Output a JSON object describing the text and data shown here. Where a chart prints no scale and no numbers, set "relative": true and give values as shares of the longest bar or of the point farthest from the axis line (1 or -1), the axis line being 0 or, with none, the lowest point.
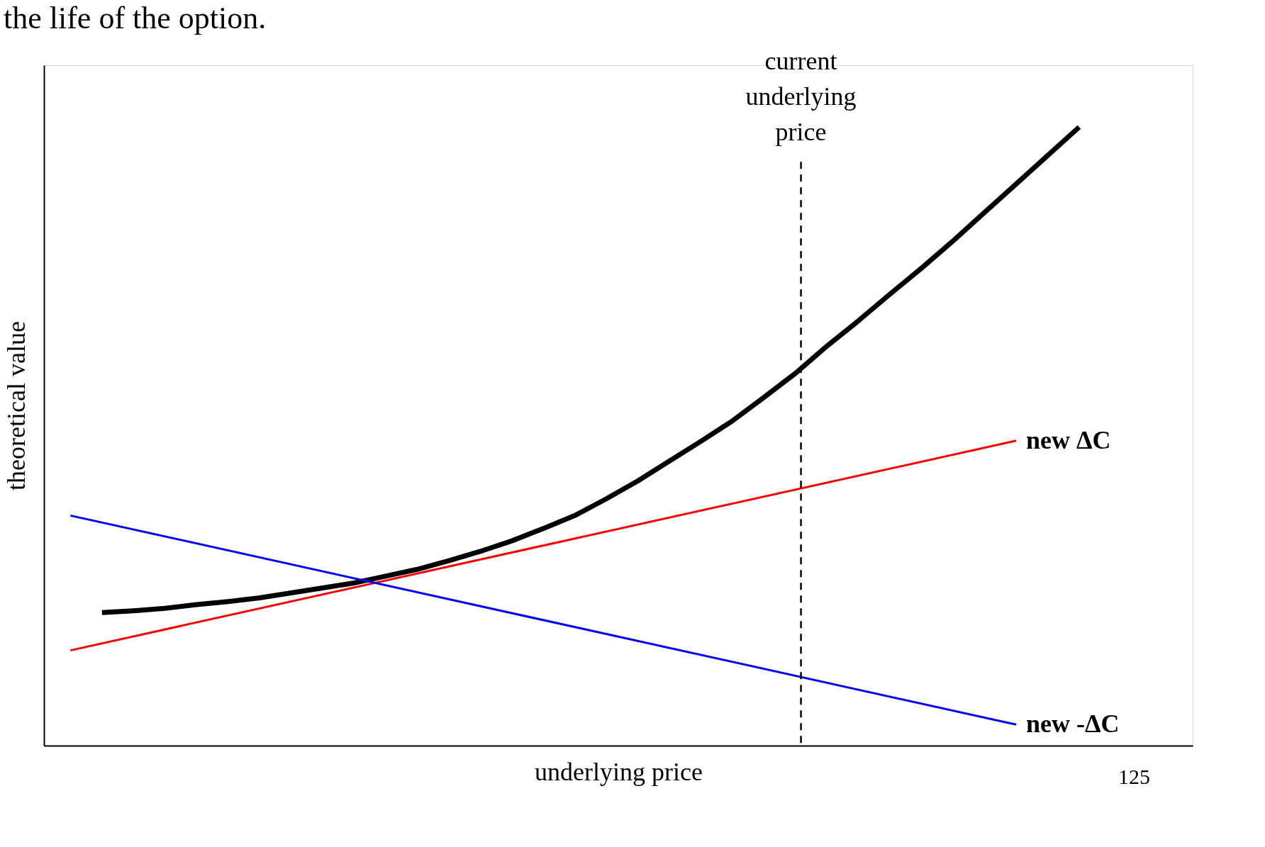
{
  "chart_data": {
    "type": "line",
    "title": "the life of the option.",
    "xlabel": "underlying price",
    "ylabel": "theoretical value",
    "relative": true,
    "categories": [
      null,
      null,
      null,
      null,
      null,
      null,
      null,
      null,
      null,
      null,
      null,
      null,
      null,
      null,
      null,
      null,
      null,
      null,
      null,
      null,
      null,
      null,
      null,
      null,
      null,
      null,
      null,
      null,
      null,
      null,
      null,
      null,
      null
    ],
    "series": [
      {
        "color": "#000000",
        "values": [
          null,
          0.215,
          0.218,
          0.222,
          0.228,
          0.233,
          0.239,
          0.247,
          0.255,
          0.263,
          0.274,
          0.285,
          0.299,
          0.314,
          0.331,
          0.351,
          0.372,
          0.399,
          0.428,
          0.46,
          0.492,
          0.525,
          0.563,
          0.602,
          0.646,
          0.687,
          0.73,
          0.772,
          0.816,
          0.862,
          0.908,
          0.954,
          1.0
        ]
      },
      {
        "name": "new ΔC",
        "color": "#ff0000",
        "values": [
          0.154,
          null,
          null,
          null,
          null,
          null,
          null,
          null,
          null,
          null,
          null,
          null,
          null,
          null,
          null,
          null,
          null,
          null,
          null,
          null,
          null,
          null,
          null,
          null,
          null,
          null,
          null,
          null,
          null,
          null,
          0.493,
          null,
          null
        ]
      },
      {
        "name": "new -ΔC",
        "color": "#0000ff",
        "values": [
          0.372,
          null,
          null,
          null,
          null,
          null,
          null,
          null,
          null,
          null,
          null,
          null,
          null,
          null,
          null,
          null,
          null,
          null,
          null,
          null,
          null,
          null,
          null,
          null,
          null,
          null,
          null,
          null,
          null,
          null,
          0.034,
          null,
          null
        ]
      }
    ],
    "annotations": [
      "current\nunderlying\nprice",
      "125"
    ],
    "grid": false,
    "marker": "none",
    "line_style": "solid"
  }
}
